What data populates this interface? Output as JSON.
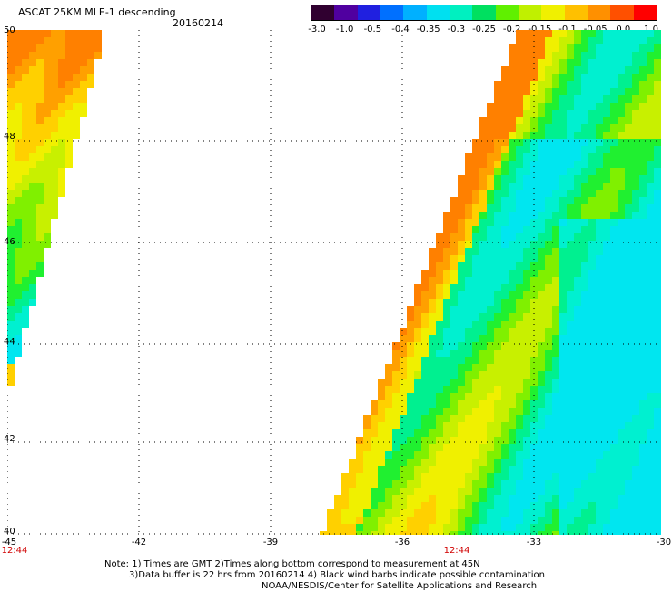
{
  "title": "ASCAT 25KM MLE-1 descending",
  "date": "20160214",
  "colorbar": {
    "labels": [
      "-3.0",
      "-1.0",
      "-0.5",
      "-0.4",
      "-0.35",
      "-0.3",
      "-0.25",
      "-0.2",
      "-0.15",
      "-0.1",
      "-0.05",
      "0.0",
      "1.0"
    ],
    "colors": [
      "#300030",
      "#5000a0",
      "#2020e0",
      "#0070ff",
      "#00b0ff",
      "#00e0f0",
      "#00f0c0",
      "#00e060",
      "#60f000",
      "#c0f000",
      "#f0f000",
      "#ffc000",
      "#ff9000",
      "#ff5000",
      "#ff0000"
    ]
  },
  "map": {
    "lat_labels": [
      "50",
      "48",
      "46",
      "44",
      "42",
      "40"
    ],
    "lon_labels": [
      "-45",
      "-42",
      "-39",
      "-36",
      "-33",
      "-30"
    ],
    "time_labels": [
      "12:44",
      "12:44"
    ]
  },
  "notes": [
    "Note: 1) Times are GMT 2)Times along bottom correspond to measurement at 45N",
    "3)Data buffer is 22 hrs from 20160214 4) Black wind barbs indicate possible contamination",
    "NOAA/NESDIS/Center for Satellite Applications and Research"
  ]
}
